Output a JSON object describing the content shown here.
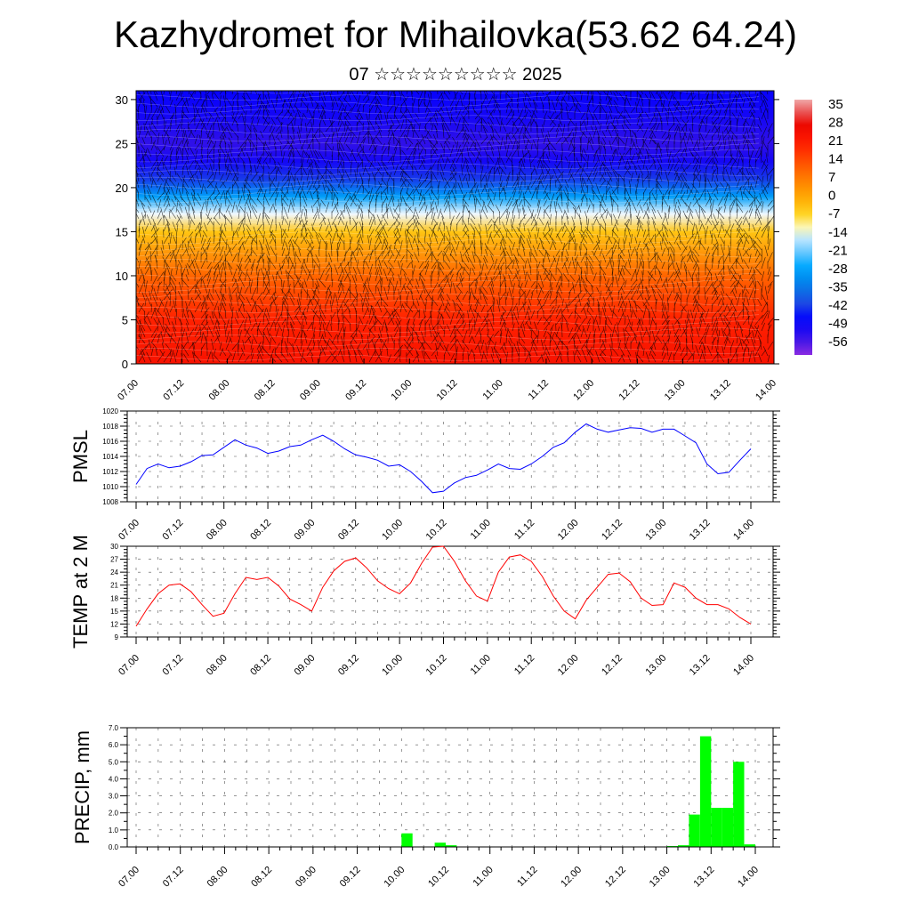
{
  "title": "Kazhydromet for Mihailovka(53.62 64.24)",
  "subtitle": "07 ☆☆☆☆☆☆☆☆☆ 2025",
  "chart_data": [
    {
      "type": "heatmap",
      "xlabel": "",
      "ylabel": "",
      "x_tick_labels": [
        "07.00",
        "07.12",
        "08.00",
        "08.12",
        "09.00",
        "09.12",
        "10.00",
        "10.12",
        "11.00",
        "11.12",
        "12.00",
        "12.12",
        "13.00",
        "13.12",
        "14.00"
      ],
      "y_ticks": [
        0,
        5,
        10,
        15,
        20,
        25,
        30
      ],
      "ylim": [
        0,
        31
      ],
      "colorbar_labels": [
        "35",
        "28",
        "21",
        "14",
        "7",
        "0",
        "-7",
        "-14",
        "-21",
        "-28",
        "-35",
        "-42",
        "-49",
        "-56"
      ],
      "temperature_profile": [
        [
          0,
          24
        ],
        [
          5,
          20
        ],
        [
          10,
          10
        ],
        [
          15,
          -5
        ],
        [
          17,
          -14
        ],
        [
          19,
          -30
        ],
        [
          21,
          -44
        ],
        [
          23,
          -52
        ],
        [
          25,
          -56
        ],
        [
          28,
          -52
        ],
        [
          31,
          -50
        ]
      ],
      "overlay": "wind vectors"
    },
    {
      "type": "line",
      "ylabel": "PMSL",
      "color": "#0000ff",
      "ylim": [
        1008,
        1020
      ],
      "y_ticks": [
        1008,
        1010,
        1012,
        1014,
        1016,
        1018,
        1020
      ],
      "x_tick_labels": [
        "07.00",
        "07.12",
        "08.00",
        "08.12",
        "09.00",
        "09.12",
        "10.00",
        "10.12",
        "11.00",
        "11.12",
        "12.00",
        "12.12",
        "13.00",
        "13.12",
        "14.00"
      ],
      "x_step_hours": 3,
      "values": [
        1010.3,
        1012.4,
        1013.0,
        1012.5,
        1012.7,
        1013.3,
        1014.1,
        1014.2,
        1015.2,
        1016.2,
        1015.5,
        1015.1,
        1014.4,
        1014.7,
        1015.3,
        1015.5,
        1016.2,
        1016.8,
        1016.0,
        1015.0,
        1014.2,
        1013.9,
        1013.5,
        1012.7,
        1012.9,
        1012.0,
        1010.7,
        1009.2,
        1009.4,
        1010.5,
        1011.2,
        1011.5,
        1012.2,
        1013.0,
        1012.4,
        1012.3,
        1013.0,
        1014.0,
        1015.2,
        1015.8,
        1017.2,
        1018.3,
        1017.6,
        1017.2,
        1017.5,
        1017.8,
        1017.7,
        1017.2,
        1017.6,
        1017.6,
        1016.7,
        1015.8,
        1013.0,
        1011.7,
        1011.9,
        1013.5,
        1015.0
      ]
    },
    {
      "type": "line",
      "ylabel": "TEMP at 2 M",
      "color": "#ff0000",
      "ylim": [
        9,
        30
      ],
      "y_ticks": [
        9,
        12,
        15,
        18,
        21,
        24,
        27,
        30
      ],
      "x_tick_labels": [
        "07.00",
        "07.12",
        "08.00",
        "08.12",
        "09.00",
        "09.12",
        "10.00",
        "10.12",
        "11.00",
        "11.12",
        "12.00",
        "12.12",
        "13.00",
        "13.12",
        "14.00"
      ],
      "x_step_hours": 3,
      "values": [
        11.5,
        15.5,
        19.0,
        21.0,
        21.3,
        19.5,
        16.5,
        13.8,
        14.5,
        19.0,
        22.8,
        22.3,
        22.8,
        20.8,
        17.8,
        16.5,
        15.0,
        20.5,
        24.3,
        26.5,
        27.3,
        25.0,
        22.0,
        20.2,
        19.0,
        21.5,
        26.0,
        29.8,
        30.0,
        26.5,
        22.0,
        18.5,
        17.3,
        24.0,
        27.5,
        28.0,
        26.5,
        23.0,
        18.5,
        15.0,
        13.2,
        17.5,
        20.5,
        23.5,
        23.8,
        21.8,
        18.0,
        16.3,
        16.5,
        21.5,
        20.5,
        18.0,
        16.5,
        16.5,
        15.5,
        13.5,
        12.0
      ]
    },
    {
      "type": "bar",
      "ylabel": "PRECIP, mm",
      "color": "#00ff00",
      "ylim": [
        0,
        7
      ],
      "y_tick_labels": [
        "0.0",
        "1.0",
        "2.0",
        "3.0",
        "4.0",
        "5.0",
        "6.0",
        "7.0"
      ],
      "x_tick_labels": [
        "07.00",
        "07.12",
        "08.00",
        "08.12",
        "09.00",
        "09.12",
        "10.00",
        "10.12",
        "11.00",
        "11.12",
        "12.00",
        "12.12",
        "13.00",
        "13.12",
        "14.00"
      ],
      "bin_hours": 3,
      "bins": [
        {
          "start_hour": 72,
          "value": 0.8
        },
        {
          "start_hour": 81,
          "value": 0.25
        },
        {
          "start_hour": 84,
          "value": 0.1
        },
        {
          "start_hour": 144,
          "value": 0.05
        },
        {
          "start_hour": 147,
          "value": 0.1
        },
        {
          "start_hour": 150,
          "value": 1.9
        },
        {
          "start_hour": 153,
          "value": 6.5
        },
        {
          "start_hour": 156,
          "value": 2.3
        },
        {
          "start_hour": 159,
          "value": 2.3
        },
        {
          "start_hour": 162,
          "value": 5.0
        },
        {
          "start_hour": 165,
          "value": 0.15
        }
      ]
    }
  ]
}
